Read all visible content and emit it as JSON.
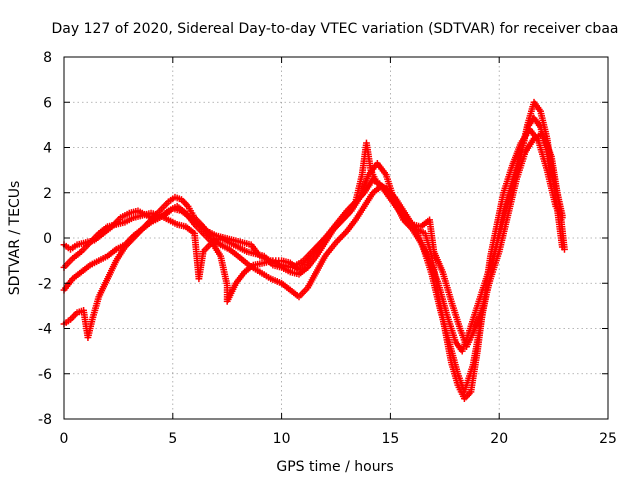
{
  "chart_data": {
    "type": "scatter",
    "title": "Day 127 of 2020, Sidereal Day-to-day VTEC variation (SDTVAR) for receiver cbaa",
    "xlabel": "GPS time / hours",
    "ylabel": "SDTVAR / TECUs",
    "xlim": [
      0,
      25
    ],
    "ylim": [
      -8,
      8
    ],
    "xticks": [
      "0",
      "5",
      "10",
      "15",
      "20",
      "25"
    ],
    "yticks": [
      "-8",
      "-6",
      "-4",
      "-2",
      "0",
      "2",
      "4",
      "6",
      "8"
    ],
    "xtick_values": [
      0,
      5,
      10,
      15,
      20,
      25
    ],
    "ytick_values": [
      -8,
      -6,
      -4,
      -2,
      0,
      2,
      4,
      6,
      8
    ],
    "grid": true,
    "marker": "plus",
    "color": "#ff0000",
    "series": [
      {
        "points": [
          [
            0.0,
            -3.8
          ],
          [
            0.3,
            -3.6
          ],
          [
            0.6,
            -3.3
          ],
          [
            0.9,
            -3.2
          ],
          [
            1.1,
            -4.4
          ],
          [
            1.3,
            -3.6
          ],
          [
            1.6,
            -2.6
          ],
          [
            2.0,
            -1.8
          ],
          [
            2.4,
            -1.0
          ],
          [
            2.8,
            -0.4
          ],
          [
            3.2,
            0.0
          ],
          [
            3.6,
            0.4
          ],
          [
            4.0,
            0.8
          ],
          [
            4.4,
            1.2
          ],
          [
            4.8,
            1.6
          ],
          [
            5.1,
            1.8
          ],
          [
            5.4,
            1.7
          ],
          [
            5.7,
            1.4
          ],
          [
            6.0,
            0.9
          ],
          [
            6.4,
            0.5
          ],
          [
            6.8,
            0.0
          ],
          [
            7.2,
            -0.3
          ],
          [
            7.6,
            -0.5
          ],
          [
            8.0,
            -0.8
          ],
          [
            8.5,
            -1.2
          ],
          [
            9.0,
            -1.5
          ],
          [
            9.5,
            -1.8
          ],
          [
            10.0,
            -2.0
          ],
          [
            10.4,
            -2.3
          ],
          [
            10.8,
            -2.6
          ],
          [
            11.2,
            -2.2
          ],
          [
            11.6,
            -1.5
          ],
          [
            12.0,
            -0.8
          ],
          [
            12.5,
            -0.2
          ],
          [
            13.0,
            0.3
          ],
          [
            13.4,
            0.8
          ],
          [
            13.8,
            1.4
          ],
          [
            14.2,
            2.0
          ],
          [
            14.6,
            2.3
          ],
          [
            15.0,
            2.0
          ],
          [
            15.4,
            1.3
          ],
          [
            15.8,
            0.8
          ],
          [
            16.2,
            0.4
          ],
          [
            16.6,
            0.2
          ],
          [
            16.9,
            -0.8
          ],
          [
            17.2,
            -2.5
          ],
          [
            17.5,
            -4.0
          ],
          [
            17.8,
            -5.5
          ],
          [
            18.1,
            -6.5
          ],
          [
            18.4,
            -7.1
          ],
          [
            18.7,
            -6.8
          ],
          [
            19.0,
            -5.0
          ],
          [
            19.3,
            -2.8
          ],
          [
            19.6,
            -0.8
          ],
          [
            19.9,
            0.6
          ],
          [
            20.2,
            2.0
          ],
          [
            20.6,
            3.2
          ],
          [
            21.0,
            4.2
          ],
          [
            21.4,
            4.8
          ],
          [
            21.8,
            4.3
          ],
          [
            22.2,
            3.0
          ],
          [
            22.6,
            1.4
          ],
          [
            22.9,
            0.9
          ]
        ]
      },
      {
        "points": [
          [
            0.0,
            -2.3
          ],
          [
            0.4,
            -1.8
          ],
          [
            0.8,
            -1.5
          ],
          [
            1.2,
            -1.2
          ],
          [
            1.6,
            -1.0
          ],
          [
            2.0,
            -0.8
          ],
          [
            2.4,
            -0.5
          ],
          [
            2.8,
            -0.3
          ],
          [
            3.2,
            0.1
          ],
          [
            3.6,
            0.4
          ],
          [
            4.0,
            0.7
          ],
          [
            4.4,
            0.9
          ],
          [
            4.8,
            1.2
          ],
          [
            5.2,
            1.4
          ],
          [
            5.6,
            1.1
          ],
          [
            6.0,
            0.6
          ],
          [
            6.4,
            0.2
          ],
          [
            6.8,
            -0.2
          ],
          [
            7.2,
            -0.8
          ],
          [
            7.5,
            -2.1
          ],
          [
            7.5,
            -2.8
          ],
          [
            7.9,
            -2.0
          ],
          [
            8.3,
            -1.5
          ],
          [
            8.7,
            -1.2
          ],
          [
            9.2,
            -1.1
          ],
          [
            9.6,
            -1.0
          ],
          [
            10.0,
            -1.0
          ],
          [
            10.4,
            -1.1
          ],
          [
            10.8,
            -1.4
          ],
          [
            11.2,
            -1.0
          ],
          [
            11.6,
            -0.5
          ],
          [
            12.0,
            0.0
          ],
          [
            12.5,
            0.6
          ],
          [
            13.0,
            1.2
          ],
          [
            13.4,
            1.6
          ],
          [
            13.8,
            2.0
          ],
          [
            14.2,
            2.6
          ],
          [
            14.5,
            2.4
          ],
          [
            14.8,
            2.0
          ],
          [
            15.1,
            1.6
          ],
          [
            15.4,
            1.2
          ],
          [
            15.8,
            0.7
          ],
          [
            16.2,
            0.3
          ],
          [
            16.5,
            -0.4
          ],
          [
            16.9,
            -1.6
          ],
          [
            17.3,
            -3.2
          ],
          [
            17.7,
            -4.6
          ],
          [
            18.1,
            -6.0
          ],
          [
            18.4,
            -6.8
          ],
          [
            18.8,
            -5.6
          ],
          [
            19.2,
            -3.5
          ],
          [
            19.6,
            -1.6
          ],
          [
            19.9,
            -0.2
          ],
          [
            20.2,
            1.2
          ],
          [
            20.6,
            2.5
          ],
          [
            21.0,
            3.8
          ],
          [
            21.3,
            4.9
          ],
          [
            21.6,
            5.3
          ],
          [
            21.9,
            4.9
          ],
          [
            22.2,
            3.8
          ],
          [
            22.6,
            2.3
          ],
          [
            22.9,
            1.0
          ]
        ]
      },
      {
        "points": [
          [
            0.0,
            -1.3
          ],
          [
            0.4,
            -0.9
          ],
          [
            0.8,
            -0.6
          ],
          [
            1.2,
            -0.2
          ],
          [
            1.6,
            0.2
          ],
          [
            2.0,
            0.5
          ],
          [
            2.4,
            0.6
          ],
          [
            2.8,
            0.7
          ],
          [
            3.2,
            0.9
          ],
          [
            3.6,
            1.0
          ],
          [
            4.0,
            1.1
          ],
          [
            4.4,
            1.0
          ],
          [
            4.8,
            0.8
          ],
          [
            5.2,
            0.6
          ],
          [
            5.6,
            0.5
          ],
          [
            6.0,
            0.2
          ],
          [
            6.2,
            -1.8
          ],
          [
            6.4,
            -0.6
          ],
          [
            6.8,
            -0.2
          ],
          [
            7.2,
            0.0
          ],
          [
            7.6,
            -0.2
          ],
          [
            8.0,
            -0.4
          ],
          [
            8.4,
            -0.6
          ],
          [
            8.8,
            -0.7
          ],
          [
            9.2,
            -0.8
          ],
          [
            9.6,
            -1.2
          ],
          [
            10.0,
            -1.3
          ],
          [
            10.4,
            -1.5
          ],
          [
            10.8,
            -1.6
          ],
          [
            11.2,
            -1.3
          ],
          [
            11.6,
            -0.8
          ],
          [
            12.0,
            -0.2
          ],
          [
            12.4,
            0.4
          ],
          [
            12.8,
            0.8
          ],
          [
            13.2,
            1.2
          ],
          [
            13.6,
            1.8
          ],
          [
            14.0,
            2.8
          ],
          [
            14.4,
            3.3
          ],
          [
            14.8,
            2.8
          ],
          [
            15.2,
            1.6
          ],
          [
            15.6,
            0.8
          ],
          [
            16.0,
            0.4
          ],
          [
            16.4,
            -0.2
          ],
          [
            16.8,
            -1.0
          ],
          [
            17.2,
            -2.0
          ],
          [
            17.6,
            -3.4
          ],
          [
            18.0,
            -4.6
          ],
          [
            18.3,
            -5.0
          ],
          [
            18.6,
            -4.2
          ],
          [
            19.0,
            -3.0
          ],
          [
            19.4,
            -1.8
          ],
          [
            19.8,
            -0.6
          ],
          [
            20.2,
            0.8
          ],
          [
            20.6,
            2.2
          ],
          [
            21.0,
            3.6
          ],
          [
            21.3,
            5.0
          ],
          [
            21.6,
            6.0
          ],
          [
            21.9,
            5.6
          ],
          [
            22.2,
            4.4
          ],
          [
            22.6,
            1.8
          ],
          [
            22.9,
            -0.4
          ]
        ]
      },
      {
        "points": [
          [
            0.0,
            -0.3
          ],
          [
            0.3,
            -0.5
          ],
          [
            0.6,
            -0.3
          ],
          [
            1.0,
            -0.2
          ],
          [
            1.4,
            -0.1
          ],
          [
            1.8,
            0.2
          ],
          [
            2.2,
            0.5
          ],
          [
            2.6,
            0.9
          ],
          [
            3.0,
            1.1
          ],
          [
            3.4,
            1.2
          ],
          [
            3.8,
            1.0
          ],
          [
            4.2,
            0.8
          ],
          [
            4.6,
            1.0
          ],
          [
            5.0,
            1.3
          ],
          [
            5.4,
            1.2
          ],
          [
            5.8,
            0.9
          ],
          [
            6.2,
            0.6
          ],
          [
            6.6,
            0.3
          ],
          [
            7.0,
            0.1
          ],
          [
            7.4,
            0.0
          ],
          [
            7.8,
            -0.1
          ],
          [
            8.2,
            -0.2
          ],
          [
            8.6,
            -0.3
          ],
          [
            9.0,
            -0.8
          ],
          [
            9.5,
            -1.0
          ],
          [
            10.0,
            -1.2
          ],
          [
            10.5,
            -1.3
          ],
          [
            11.0,
            -1.0
          ],
          [
            11.4,
            -0.6
          ],
          [
            11.8,
            -0.2
          ],
          [
            12.2,
            0.2
          ],
          [
            12.6,
            0.6
          ],
          [
            13.0,
            1.0
          ],
          [
            13.4,
            1.6
          ],
          [
            13.7,
            2.8
          ],
          [
            13.9,
            4.2
          ],
          [
            14.1,
            3.0
          ],
          [
            14.4,
            2.4
          ],
          [
            14.8,
            2.2
          ],
          [
            15.2,
            1.8
          ],
          [
            15.6,
            1.2
          ],
          [
            16.0,
            0.6
          ],
          [
            16.4,
            0.5
          ],
          [
            16.8,
            0.8
          ],
          [
            17.0,
            -0.6
          ],
          [
            17.4,
            -1.5
          ],
          [
            17.8,
            -2.8
          ],
          [
            18.2,
            -4.0
          ],
          [
            18.5,
            -4.8
          ],
          [
            18.8,
            -4.2
          ],
          [
            19.2,
            -3.2
          ],
          [
            19.6,
            -1.8
          ],
          [
            20.0,
            -0.6
          ],
          [
            20.4,
            1.0
          ],
          [
            20.8,
            2.6
          ],
          [
            21.2,
            3.8
          ],
          [
            21.6,
            4.4
          ],
          [
            22.0,
            4.6
          ],
          [
            22.4,
            3.6
          ],
          [
            22.8,
            1.2
          ],
          [
            23.0,
            -0.5
          ]
        ]
      }
    ]
  }
}
